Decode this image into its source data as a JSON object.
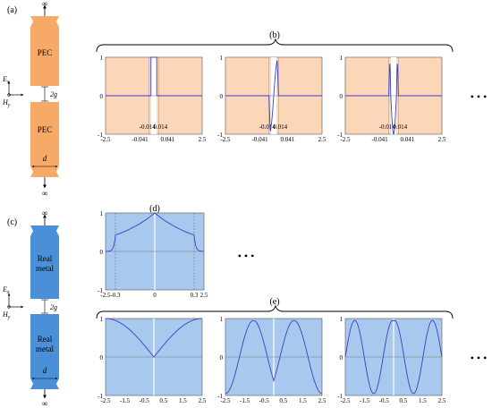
{
  "panels": {
    "a": "(a)",
    "b": "(b)",
    "c": "(c)",
    "d": "(d)",
    "e": "(e)"
  },
  "labels": {
    "infinity": "∞",
    "pec": "PEC",
    "real_metal_line1": "Real",
    "real_metal_line2": "metal",
    "field_e": "E",
    "field_e_sub": "x",
    "field_h": "H",
    "field_h_sub": "y",
    "gap": "2g",
    "width": "d",
    "ellipsis": "• • •"
  },
  "colors": {
    "pec_fill": "#f7a968",
    "pec_plot_bg": "#fbd6b8",
    "metal_fill": "#4a90d9",
    "metal_plot_bg": "#a9c8ee",
    "curve": "#3a3fc8"
  },
  "chart_data": [
    {
      "type": "line",
      "id": "b1",
      "xlim": [
        -2.5,
        2.5
      ],
      "ylim": [
        -1,
        1
      ],
      "yticks": [
        "1",
        "0",
        "-1"
      ],
      "xticks": [
        "-2.5",
        "-0.041",
        "-0.014",
        "0.014",
        "0.041",
        "2.5"
      ],
      "series": [
        {
          "mode": "pec",
          "k": 0,
          "x": [
            -2.5,
            -0.014,
            -0.014,
            0.014,
            0.014,
            2.5
          ],
          "y": [
            0,
            0,
            1,
            1,
            0,
            0
          ]
        }
      ]
    },
    {
      "type": "line",
      "id": "b2",
      "xlim": [
        -2.5,
        2.5
      ],
      "ylim": [
        -1,
        1
      ],
      "yticks": [
        "1",
        "0",
        "-1"
      ],
      "xticks": [
        "-2.5",
        "-0.041",
        "-0.014",
        "0.014",
        "0.041",
        "2.5"
      ],
      "series": [
        {
          "mode": "pec",
          "k": 1
        }
      ]
    },
    {
      "type": "line",
      "id": "b3",
      "xlim": [
        -2.5,
        2.5
      ],
      "ylim": [
        -1,
        1
      ],
      "yticks": [
        "1",
        "0",
        "-1"
      ],
      "xticks": [
        "-2.5",
        "-0.041",
        "-0.014",
        "0.014",
        "0.041",
        "2.5"
      ],
      "series": [
        {
          "mode": "pec",
          "k": 2
        }
      ]
    },
    {
      "type": "line",
      "id": "d",
      "xlim": [
        -2.5,
        2.5
      ],
      "ylim": [
        -1,
        1
      ],
      "yticks": [
        "1",
        "0",
        "-1"
      ],
      "xticks": [
        "-2.5",
        "-0.3",
        "0",
        "0.3",
        "2.5"
      ],
      "series": [
        {
          "mode": "cusp"
        }
      ]
    },
    {
      "type": "line",
      "id": "e1",
      "xlim": [
        -2.5,
        2.5
      ],
      "ylim": [
        -1,
        1
      ],
      "yticks": [
        "1",
        "0",
        "-1"
      ],
      "xticks": [
        "-2.5",
        "-1.5",
        "-0.5",
        "0.5",
        "1.5",
        "2.5"
      ],
      "series": [
        {
          "mode": "abs_sin",
          "freq": 1
        }
      ]
    },
    {
      "type": "line",
      "id": "e2",
      "xlim": [
        -2.5,
        2.5
      ],
      "ylim": [
        -1,
        1
      ],
      "yticks": [
        "1",
        "0",
        "-1"
      ],
      "xticks": [
        "-2.5",
        "-1.5",
        "-0.5",
        "0.5",
        "1.5",
        "2.5"
      ],
      "series": [
        {
          "mode": "cos_mode",
          "freq": 2
        }
      ]
    },
    {
      "type": "line",
      "id": "e3",
      "xlim": [
        -2.5,
        2.5
      ],
      "ylim": [
        -1,
        1
      ],
      "yticks": [
        "1",
        "0",
        "-1"
      ],
      "xticks": [
        "-2.5",
        "-1.5",
        "-0.5",
        "0.5",
        "1.5",
        "2.5"
      ],
      "series": [
        {
          "mode": "cos_mode",
          "freq": 3
        }
      ]
    }
  ]
}
